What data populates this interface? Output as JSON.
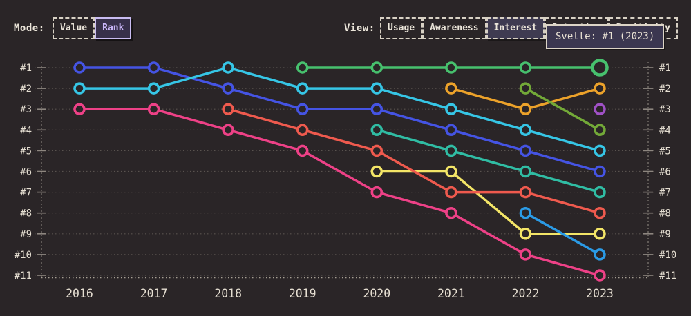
{
  "header": {
    "mode": {
      "label": "Mode:",
      "options": [
        {
          "label": "Value",
          "selected": false
        },
        {
          "label": "Rank",
          "selected": true
        }
      ]
    },
    "view": {
      "label": "View:",
      "options": [
        {
          "label": "Usage",
          "selected": false
        },
        {
          "label": "Awareness",
          "selected": false
        },
        {
          "label": "Interest",
          "selected": true
        },
        {
          "label": "Retention",
          "selected": false
        },
        {
          "label": "Positivity",
          "selected": false
        }
      ]
    }
  },
  "tooltip": {
    "text": "Svelte: #1 (2023)"
  },
  "colors": {
    "background": "#2a2527",
    "text_cream": "#e6dfd2",
    "grid_dotted": "#59534f",
    "axis_dashed": "#78726c",
    "tick": "#8d867f",
    "baseline": "#a8a196",
    "accent_purple": "#c9b6f8",
    "tooltip_bg": "#3b3750",
    "tooltip_border": "#dcd4c6"
  },
  "chart_data": {
    "type": "line",
    "subtype": "bump-rank",
    "x": [
      2016,
      2017,
      2018,
      2019,
      2020,
      2021,
      2022,
      2023
    ],
    "x_labels": [
      "2016",
      "2017",
      "2018",
      "2019",
      "2020",
      "2021",
      "2022",
      "2023"
    ],
    "rank_labels": [
      "#1",
      "#2",
      "#3",
      "#4",
      "#5",
      "#6",
      "#7",
      "#8",
      "#9",
      "#10",
      "#11"
    ],
    "ylim": [
      1,
      11
    ],
    "y_inverted": true,
    "grid": "dotted-horizontal",
    "legend": "none",
    "highlighted_point": {
      "series": "green",
      "x": 2023,
      "rank": 1,
      "label": "Svelte: #1 (2023)"
    },
    "series": [
      {
        "id": "royal-blue",
        "color": "#4554e4",
        "ranks": [
          1,
          1,
          2,
          3,
          3,
          4,
          5,
          6
        ]
      },
      {
        "id": "cyan",
        "color": "#36c6e6",
        "ranks": [
          2,
          2,
          1,
          2,
          2,
          3,
          4,
          5
        ]
      },
      {
        "id": "pink",
        "color": "#ee4187",
        "ranks": [
          3,
          3,
          4,
          5,
          7,
          8,
          10,
          11
        ]
      },
      {
        "id": "yellow",
        "color": "#f3e567",
        "ranks": [
          null,
          null,
          null,
          null,
          6,
          6,
          9,
          9
        ]
      },
      {
        "id": "salmon-red",
        "color": "#ef5a4e",
        "ranks": [
          null,
          null,
          3,
          4,
          5,
          7,
          7,
          8
        ]
      },
      {
        "id": "green",
        "color": "#47c16e",
        "label": "Svelte",
        "ranks": [
          null,
          null,
          null,
          1,
          1,
          1,
          1,
          1
        ],
        "highlight_last": true
      },
      {
        "id": "teal",
        "color": "#30bda4",
        "ranks": [
          null,
          null,
          null,
          null,
          4,
          5,
          6,
          7
        ]
      },
      {
        "id": "orange",
        "color": "#eca22a",
        "ranks": [
          null,
          null,
          null,
          null,
          null,
          2,
          3,
          2
        ]
      },
      {
        "id": "olive-green",
        "color": "#73a938",
        "ranks": [
          null,
          null,
          null,
          null,
          null,
          null,
          2,
          4
        ]
      },
      {
        "id": "sky-blue",
        "color": "#2b9be6",
        "ranks": [
          null,
          null,
          null,
          null,
          null,
          null,
          8,
          10
        ]
      },
      {
        "id": "purple",
        "color": "#a051c6",
        "ranks": [
          null,
          null,
          null,
          null,
          null,
          null,
          null,
          3
        ]
      }
    ]
  }
}
